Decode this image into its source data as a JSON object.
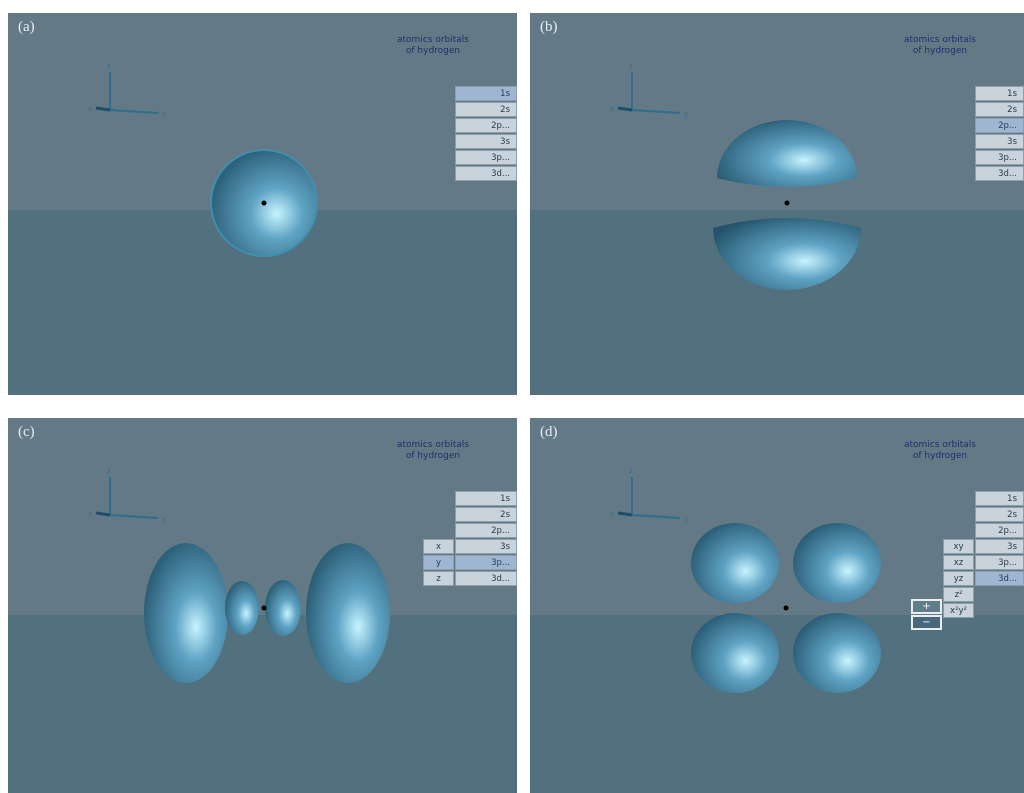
{
  "figure": {
    "axis_labels": {
      "x": "x",
      "y": "y",
      "z": "z"
    },
    "panels": [
      {
        "label": "(a)",
        "title": [
          "atomics orbitals",
          "of hydrogen"
        ],
        "menu": [
          {
            "label": "1s",
            "selected": true
          },
          {
            "label": "2s",
            "selected": false
          },
          {
            "label": "2p...",
            "selected": false
          },
          {
            "label": "3s",
            "selected": false
          },
          {
            "label": "3p...",
            "selected": false
          },
          {
            "label": "3d...",
            "selected": false
          }
        ]
      },
      {
        "label": "(b)",
        "title": [
          "atomics orbitals",
          "of hydrogen"
        ],
        "menu": [
          {
            "label": "1s",
            "selected": false
          },
          {
            "label": "2s",
            "selected": false
          },
          {
            "label": "2p...",
            "selected": true
          },
          {
            "label": "3s",
            "selected": false
          },
          {
            "label": "3p...",
            "selected": false
          },
          {
            "label": "3d...",
            "selected": false
          }
        ]
      },
      {
        "label": "(c)",
        "title": [
          "atomics orbitals",
          "of hydrogen"
        ],
        "menu": [
          {
            "label": "1s",
            "selected": false
          },
          {
            "label": "2s",
            "selected": false
          },
          {
            "label": "2p...",
            "selected": false
          },
          {
            "label": "3s",
            "selected": false
          },
          {
            "label": "3p...",
            "selected": true
          },
          {
            "label": "3d...",
            "selected": false
          }
        ],
        "submenu": [
          {
            "label": "x",
            "selected": false
          },
          {
            "label": "y",
            "selected": true
          },
          {
            "label": "z",
            "selected": false
          }
        ]
      },
      {
        "label": "(d)",
        "title": [
          "atomics orbitals",
          "of hydrogen"
        ],
        "menu": [
          {
            "label": "1s",
            "selected": false
          },
          {
            "label": "2s",
            "selected": false
          },
          {
            "label": "2p...",
            "selected": false
          },
          {
            "label": "3s",
            "selected": false
          },
          {
            "label": "3p...",
            "selected": false
          },
          {
            "label": "3d...",
            "selected": true
          }
        ],
        "submenu": [
          {
            "label": "xy",
            "selected": false
          },
          {
            "label": "xz",
            "selected": false
          },
          {
            "label": "yz",
            "selected": false
          },
          {
            "label": "z²",
            "selected": false
          },
          {
            "label": "x²y²",
            "selected": false
          }
        ],
        "signs": [
          {
            "label": "+",
            "selected": false
          },
          {
            "label": "−",
            "selected": true
          }
        ]
      }
    ]
  }
}
